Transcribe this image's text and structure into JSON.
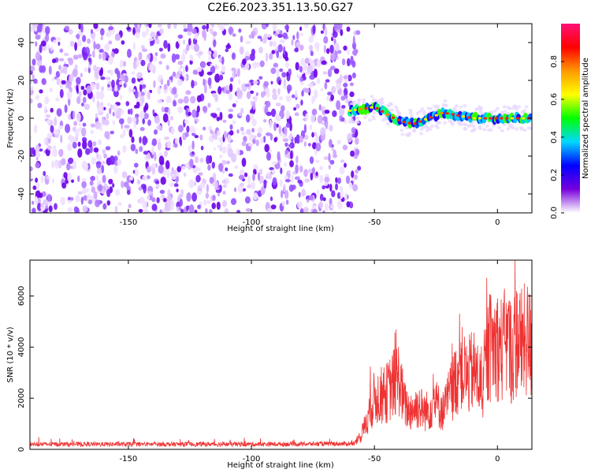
{
  "figure_title": "C2E6.2023.351.13.50.G27",
  "colors": {
    "snr_line": "#ee3333",
    "scatter_purple": "#6600ee",
    "colormap": [
      "#ffffff",
      "#7700dd",
      "#0000ff",
      "#00d8ff",
      "#00ff00",
      "#ffff00",
      "#ff9900",
      "#ff0000",
      "#ff1177"
    ]
  },
  "chart_data": [
    {
      "type": "heatmap",
      "title": "",
      "xlabel": "Height of straight line (km)",
      "ylabel": "Frequency (Hz)",
      "xlim": [
        -190,
        14
      ],
      "ylim": [
        -50,
        50
      ],
      "xticks": [
        -150,
        -100,
        -50,
        0
      ],
      "yticks": [
        -40,
        -20,
        0,
        20,
        40
      ],
      "noise_region_x": [
        -190,
        -58
      ],
      "signal_track": {
        "x": [
          -60,
          -55,
          -50,
          -46,
          -42,
          -38,
          -34,
          -30,
          -26,
          -22,
          -18,
          -14,
          -10,
          -6,
          -2,
          2,
          6,
          10,
          14
        ],
        "frequency_hz": [
          4,
          5,
          6,
          3,
          0,
          -2,
          -3,
          -1,
          1,
          3,
          2,
          1,
          0,
          0,
          0,
          0,
          0,
          0,
          0
        ]
      },
      "colorbar": {
        "label": "Normalized spectral amplitude",
        "range": [
          0.0,
          1.0
        ],
        "ticks": [
          0.0,
          0.2,
          0.4,
          0.6,
          0.8
        ]
      }
    },
    {
      "type": "line",
      "title": "",
      "xlabel": "Height of straight line (km)",
      "ylabel": "SNR (10 * v/v)",
      "xlim": [
        -190,
        14
      ],
      "ylim": [
        0,
        7400
      ],
      "xticks": [
        -150,
        -100,
        -50,
        0
      ],
      "yticks": [
        0,
        2000,
        4000,
        6000
      ],
      "envelope": {
        "x": [
          -190,
          -150,
          -100,
          -58,
          -55,
          -52,
          -50,
          -47,
          -45,
          -42,
          -40,
          -38,
          -36,
          -34,
          -32,
          -30,
          -28,
          -26,
          -24,
          -22,
          -20,
          -17,
          -15,
          -12,
          -10,
          -8,
          -6,
          -4,
          -2,
          0,
          2,
          4,
          6,
          8,
          10,
          12,
          14
        ],
        "y": [
          200,
          200,
          200,
          220,
          600,
          1500,
          2000,
          2100,
          2200,
          2600,
          2800,
          1800,
          1500,
          1600,
          1700,
          1500,
          1500,
          1900,
          1700,
          1500,
          2000,
          2700,
          3200,
          2800,
          3100,
          2800,
          2300,
          3800,
          4100,
          4100,
          3900,
          4300,
          3700,
          4400,
          4100,
          4300,
          4000
        ]
      }
    }
  ]
}
